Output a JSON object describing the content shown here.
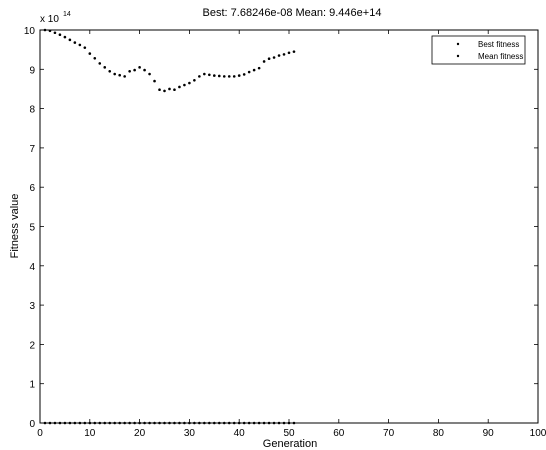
{
  "colors": {
    "background": "#ffffff",
    "axes": "#000000",
    "best_fitness": "#000000",
    "mean_fitness": "#000000"
  },
  "chart_data": {
    "type": "scatter",
    "title": "Best: 7.68246e-08 Mean: 9.446e+14",
    "xlabel": "Generation",
    "ylabel": "Fitness value",
    "y_multiplier_label": "x 10",
    "y_multiplier_exponent": "14",
    "xlim": [
      0,
      100
    ],
    "ylim": [
      0,
      10
    ],
    "y_scale_note": "values in units of 1e14",
    "x_ticks": [
      "0",
      "10",
      "20",
      "30",
      "40",
      "50",
      "60",
      "70",
      "80",
      "90",
      "100"
    ],
    "y_ticks": [
      "0",
      "1",
      "2",
      "3",
      "4",
      "5",
      "6",
      "7",
      "8",
      "9",
      "10"
    ],
    "grid": false,
    "legend_position": "top-right",
    "series": [
      {
        "name": "Best fitness",
        "x": [
          1,
          2,
          3,
          4,
          5,
          6,
          7,
          8,
          9,
          10,
          11,
          12,
          13,
          14,
          15,
          16,
          17,
          18,
          19,
          20,
          21,
          22,
          23,
          24,
          25,
          26,
          27,
          28,
          29,
          30,
          31,
          32,
          33,
          34,
          35,
          36,
          37,
          38,
          39,
          40,
          41,
          42,
          43,
          44,
          45,
          46,
          47,
          48,
          49,
          50,
          51
        ],
        "y": [
          0,
          0,
          0,
          0,
          0,
          0,
          0,
          0,
          0,
          0,
          0,
          0,
          0,
          0,
          0,
          0,
          0,
          0,
          0,
          0,
          0,
          0,
          0,
          0,
          0,
          0,
          0,
          0,
          0,
          0,
          0,
          0,
          0,
          0,
          0,
          0,
          0,
          0,
          0,
          0,
          0,
          0,
          0,
          0,
          0,
          0,
          0,
          0,
          0,
          0,
          0
        ]
      },
      {
        "name": "Mean fitness",
        "x": [
          1,
          2,
          3,
          4,
          5,
          6,
          7,
          8,
          9,
          10,
          11,
          12,
          13,
          14,
          15,
          16,
          17,
          18,
          19,
          20,
          21,
          22,
          23,
          24,
          25,
          26,
          27,
          28,
          29,
          30,
          31,
          32,
          33,
          34,
          35,
          36,
          37,
          38,
          39,
          40,
          41,
          42,
          43,
          44,
          45,
          46,
          47,
          48,
          49,
          50,
          51
        ],
        "y": [
          10.0,
          9.98,
          9.93,
          9.88,
          9.82,
          9.75,
          9.68,
          9.62,
          9.55,
          9.4,
          9.28,
          9.15,
          9.05,
          8.95,
          8.88,
          8.85,
          8.82,
          8.95,
          8.98,
          9.05,
          8.98,
          8.88,
          8.7,
          8.48,
          8.45,
          8.5,
          8.48,
          8.55,
          8.6,
          8.65,
          8.72,
          8.82,
          8.88,
          8.86,
          8.84,
          8.83,
          8.82,
          8.82,
          8.82,
          8.84,
          8.87,
          8.93,
          8.98,
          9.03,
          9.2,
          9.27,
          9.3,
          9.35,
          9.38,
          9.42,
          9.45
        ]
      }
    ]
  }
}
